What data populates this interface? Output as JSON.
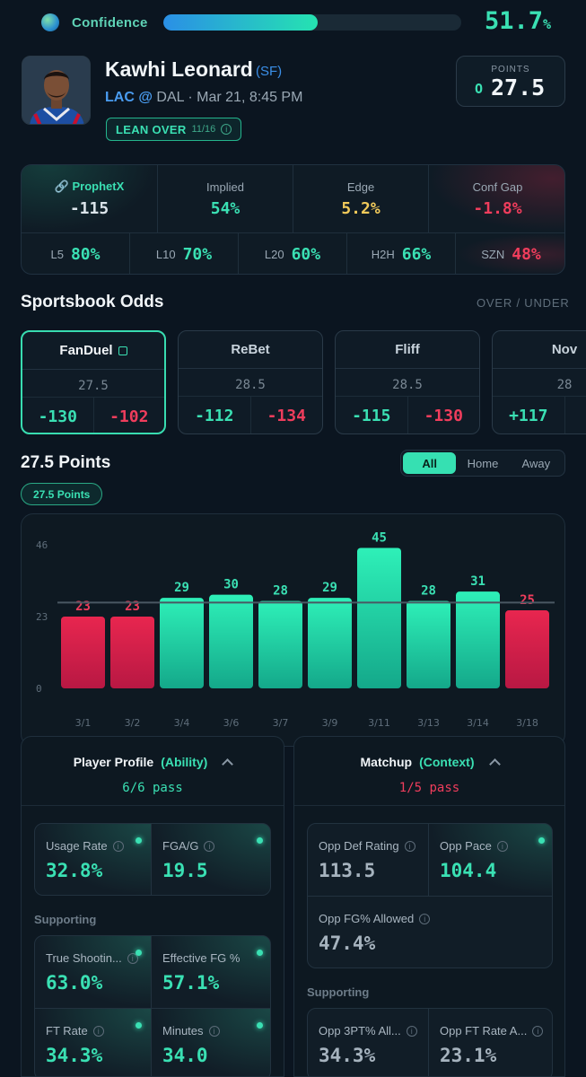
{
  "confidence": {
    "label": "Confidence",
    "value": "51.7",
    "unit": "%",
    "fill_fraction": 0.517
  },
  "player": {
    "name": "Kawhi Leonard",
    "position": "(SF)",
    "team": "LAC",
    "at": "@",
    "game_rest": "DAL · Mar 21, 8:45 PM",
    "lean": "LEAN OVER",
    "lean_count": "11/16"
  },
  "line_box": {
    "label": "POINTS",
    "side": "O",
    "value": "27.5"
  },
  "stats_top": [
    {
      "label": "ProphetX",
      "value": "-115"
    },
    {
      "label": "Implied",
      "value": "54%"
    },
    {
      "label": "Edge",
      "value": "5.2%"
    },
    {
      "label": "Conf Gap",
      "value": "-1.8%"
    }
  ],
  "stats_bottom": [
    {
      "label": "L5",
      "value": "80%"
    },
    {
      "label": "L10",
      "value": "70%"
    },
    {
      "label": "L20",
      "value": "60%"
    },
    {
      "label": "H2H",
      "value": "66%"
    },
    {
      "label": "SZN",
      "value": "48%"
    }
  ],
  "sportsbook": {
    "title": "Sportsbook Odds",
    "toggle_label": "OVER / UNDER",
    "books": [
      {
        "name": "FanDuel",
        "line": "27.5",
        "over": "-130",
        "under": "-102"
      },
      {
        "name": "ReBet",
        "line": "28.5",
        "over": "-112",
        "under": "-134"
      },
      {
        "name": "Fliff",
        "line": "28.5",
        "over": "-115",
        "under": "-130"
      },
      {
        "name": "Nov",
        "line": "28",
        "over": "+117",
        "under": ""
      }
    ]
  },
  "chart_section": {
    "title": "27.5 Points",
    "tabs": [
      "All",
      "Home",
      "Away"
    ],
    "active_tab": "All",
    "chip": "27.5 Points"
  },
  "chart_data": {
    "type": "bar",
    "categories": [
      "3/1",
      "3/2",
      "3/4",
      "3/6",
      "3/7",
      "3/9",
      "3/11",
      "3/13",
      "3/14",
      "3/18"
    ],
    "values": [
      23,
      23,
      29,
      30,
      28,
      29,
      45,
      28,
      31,
      25
    ],
    "y_ticks": [
      "46",
      "23",
      "0"
    ],
    "ylim": [
      0,
      46
    ],
    "threshold": 27.5,
    "colors": {
      "over": "#2ef0b8",
      "under": "#e8264f"
    }
  },
  "player_profile": {
    "title": "Player Profile",
    "subtitle": "(Ability)",
    "pass": "6/6 pass",
    "primary": [
      {
        "label": "Usage Rate",
        "value": "32.8%"
      },
      {
        "label": "FGA/G",
        "value": "19.5"
      }
    ],
    "supporting_label": "Supporting",
    "supporting": [
      {
        "label": "True Shootin...",
        "value": "63.0%"
      },
      {
        "label": "Effective FG %",
        "value": "57.1%"
      },
      {
        "label": "FT Rate",
        "value": "34.3%"
      },
      {
        "label": "Minutes",
        "value": "34.0"
      }
    ]
  },
  "matchup": {
    "title": "Matchup",
    "subtitle": "(Context)",
    "pass": "1/5 pass",
    "primary": [
      {
        "label": "Opp Def Rating",
        "value": "113.5"
      },
      {
        "label": "Opp Pace",
        "value": "104.4"
      },
      {
        "label": "Opp FG% Allowed",
        "value": "47.4%"
      }
    ],
    "supporting_label": "Supporting",
    "supporting": [
      {
        "label": "Opp 3PT% All...",
        "value": "34.3%"
      },
      {
        "label": "Opp FT Rate A...",
        "value": "23.1%"
      }
    ]
  }
}
